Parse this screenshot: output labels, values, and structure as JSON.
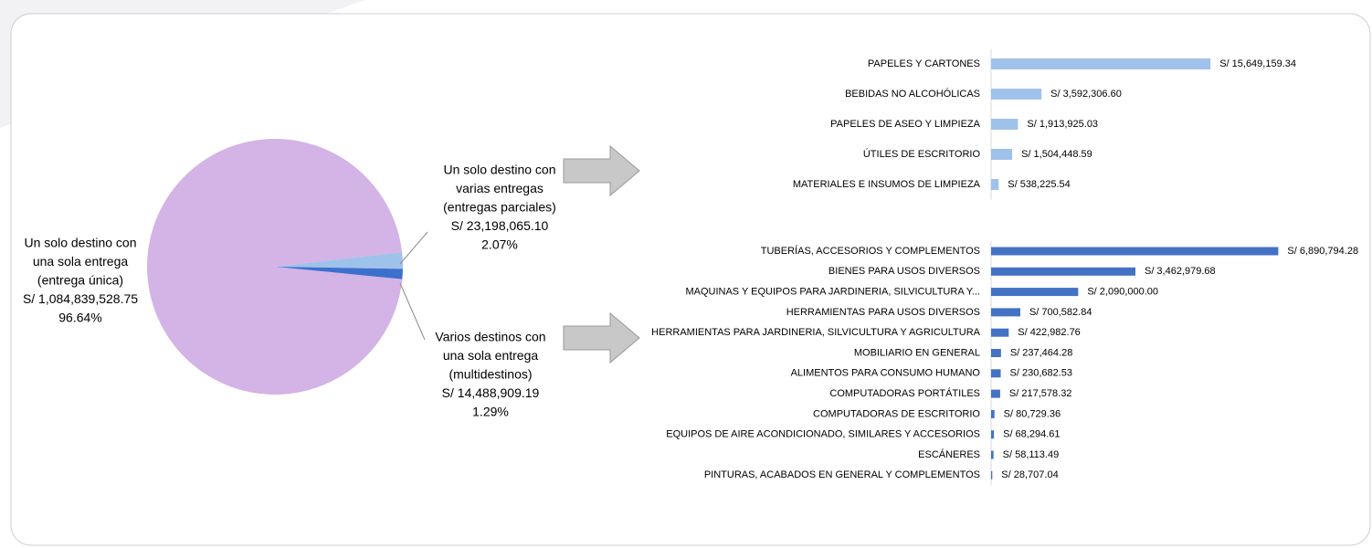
{
  "chart_data": [
    {
      "type": "pie",
      "categories": [
        [
          "Un solo destino con",
          "una sola entrega",
          "(entrega única)"
        ],
        [
          "Un solo destino con",
          "varias entregas",
          "(entregas parciales)"
        ],
        [
          "Varios destinos con",
          "una sola entrega",
          "(multidestinos)"
        ]
      ],
      "values": [
        96.64,
        2.07,
        1.29
      ],
      "value_labels": [
        "96.64%",
        "2.07%",
        "1.29%"
      ],
      "amounts": [
        1084839528.75,
        23198065.1,
        14488909.19
      ],
      "amount_labels": [
        "S/ 1,084,839,528.75",
        "S/ 23,198,065.10",
        "S/ 14,488,909.19"
      ],
      "colors": [
        "#d4b3e6",
        "#9fc2ea",
        "#3d6fcd"
      ]
    },
    {
      "type": "hbar",
      "categories": [
        "PAPELES Y CARTONES",
        "BEBIDAS NO ALCOHÓLICAS",
        "PAPELES DE ASEO Y LIMPIEZA",
        "ÚTILES DE ESCRITORIO",
        "MATERIALES E INSUMOS DE LIMPIEZA"
      ],
      "values": [
        15649159.34,
        3592306.6,
        1913925.03,
        1504448.59,
        538225.54
      ],
      "value_labels": [
        "S/ 15,649,159.34",
        "S/ 3,592,306.60",
        "S/ 1,913,925.03",
        "S/ 1,504,448.59",
        "S/ 538,225.54"
      ],
      "color": "#9fc2ea",
      "xlim": [
        0,
        20000000
      ]
    },
    {
      "type": "hbar",
      "categories": [
        "TUBERÍAS, ACCESORIOS Y COMPLEMENTOS",
        "BIENES PARA USOS DIVERSOS",
        "MAQUINAS Y EQUIPOS PARA JARDINERIA, SILVICULTURA Y...",
        "HERRAMIENTAS PARA USOS DIVERSOS",
        "HERRAMIENTAS PARA JARDINERIA, SILVICULTURA Y AGRICULTURA",
        "MOBILIARIO EN GENERAL",
        "ALIMENTOS PARA CONSUMO HUMANO",
        "COMPUTADORAS PORTÁTILES",
        "COMPUTADORAS DE ESCRITORIO",
        "EQUIPOS DE AIRE ACONDICIONADO, SIMILARES Y ACCESORIOS",
        "ESCÁNERES",
        "PINTURAS, ACABADOS EN GENERAL Y COMPLEMENTOS"
      ],
      "values": [
        6890794.28,
        3462979.68,
        2090000.0,
        700582.84,
        422982.76,
        237464.28,
        230682.53,
        217578.32,
        80729.36,
        68294.61,
        58113.49,
        28707.04
      ],
      "value_labels": [
        "S/ 6,890,794.28",
        "S/ 3,462,979.68",
        "S/ 2,090,000.00",
        "S/ 700,582.84",
        "S/ 422,982.76",
        "S/ 237,464.28",
        "S/ 230,682.53",
        "S/ 217,578.32",
        "S/ 80,729.36",
        "S/ 68,294.61",
        "S/ 58,113.49",
        "S/ 28,707.04"
      ],
      "color": "#4472c4",
      "xlim": [
        0,
        8000000
      ]
    }
  ]
}
